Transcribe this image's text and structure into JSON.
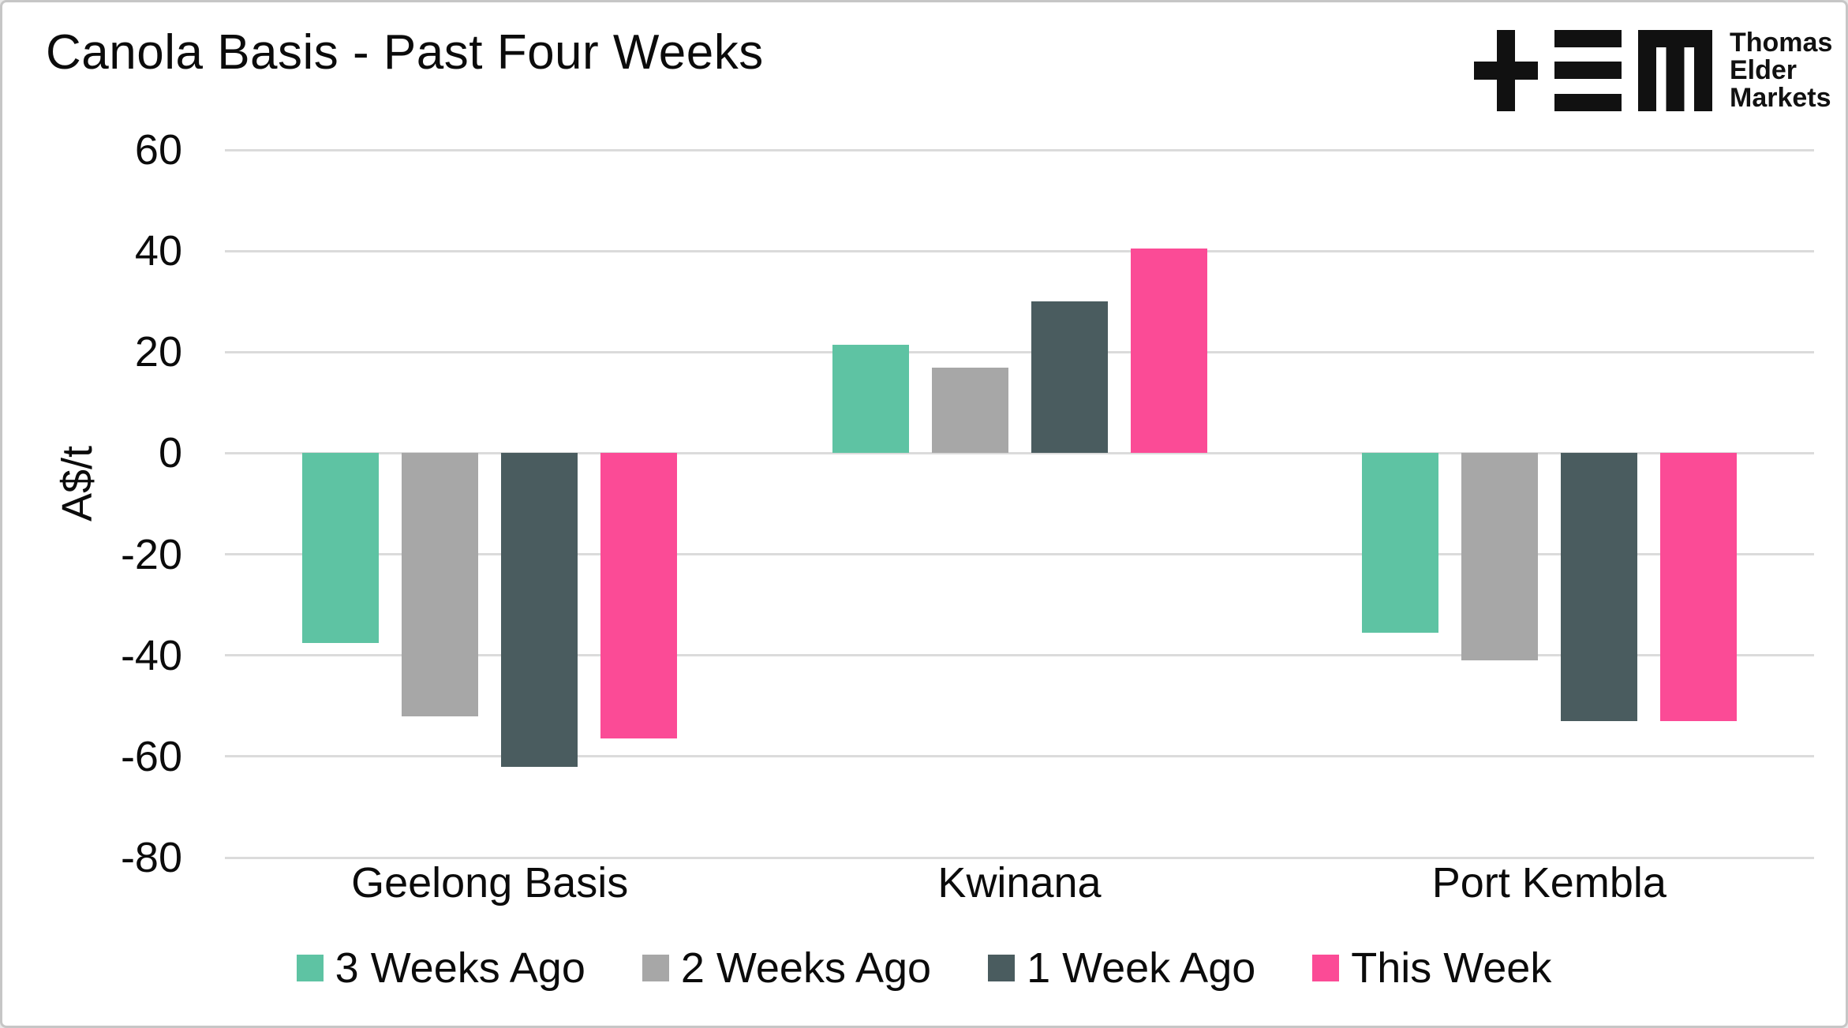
{
  "page": {
    "background": "#ffffff",
    "border_color": "#c6c6c6"
  },
  "logo": {
    "name": "Thomas Elder Markets",
    "lines": [
      "Thomas",
      "Elder",
      "Markets"
    ]
  },
  "chart_data": {
    "type": "bar",
    "title": "Canola Basis - Past Four Weeks",
    "xlabel": "",
    "ylabel": "A$/t",
    "ylim": [
      -80,
      60
    ],
    "yticks": [
      60,
      40,
      20,
      0,
      -20,
      -40,
      -60,
      -80
    ],
    "grid": true,
    "legend_position": "bottom",
    "categories": [
      "Geelong Basis",
      "Kwinana",
      "Port Kembla"
    ],
    "series": [
      {
        "name": "3 Weeks Ago",
        "color": "#5EC3A3",
        "values": [
          -37.5,
          21.5,
          -35.5
        ]
      },
      {
        "name": "2 Weeks Ago",
        "color": "#A7A7A7",
        "values": [
          -52,
          17,
          -41
        ]
      },
      {
        "name": "1 Week Ago",
        "color": "#4A5C5F",
        "values": [
          -62,
          30,
          -53
        ]
      },
      {
        "name": "This Week",
        "color": "#FB4B96",
        "values": [
          -56.5,
          40.5,
          -53
        ]
      }
    ],
    "colors": {
      "gridline": "#DBDBDB",
      "text": "#0B0B0B"
    }
  }
}
